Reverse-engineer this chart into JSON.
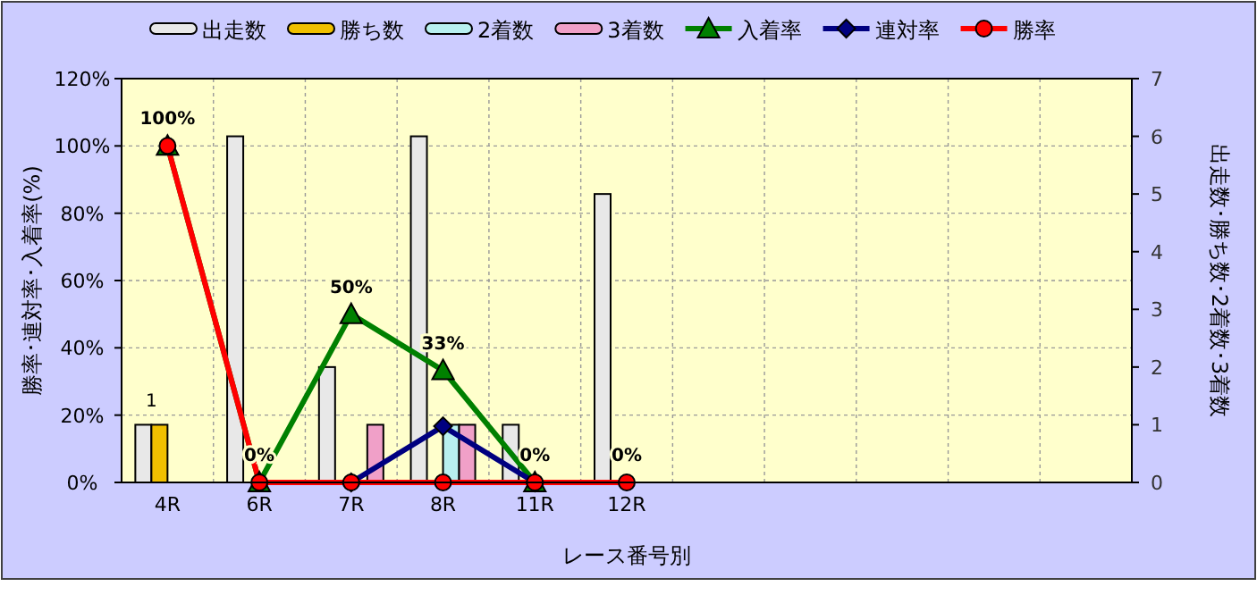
{
  "chart_data": {
    "type": "bar",
    "xlabel": "レース番号別",
    "ylabel": "勝率･連対率･入着率(%)",
    "y2label": "出走数･勝ち数･2着数･3着数",
    "categories": [
      "4R",
      "6R",
      "7R",
      "8R",
      "11R",
      "12R",
      null,
      null,
      null,
      null,
      null
    ],
    "ylim": [
      0,
      120
    ],
    "yticks": [
      {
        "value": 0,
        "label": "0%"
      },
      {
        "value": 20,
        "label": "20%"
      },
      {
        "value": 40,
        "label": "40%"
      },
      {
        "value": 60,
        "label": "60%"
      },
      {
        "value": 80,
        "label": "80%"
      },
      {
        "value": 100,
        "label": "100%"
      },
      {
        "value": 120,
        "label": "120%"
      }
    ],
    "y2lim": [
      0,
      7
    ],
    "y2ticks": [
      0,
      1,
      2,
      3,
      4,
      5,
      6,
      7
    ],
    "grid": true,
    "legend": "top",
    "series": [
      {
        "name": "出走数",
        "axis": "y2",
        "color": "#e8e8e8",
        "values": [
          1,
          6,
          2,
          6,
          1,
          5,
          null,
          null,
          null,
          null,
          null
        ]
      },
      {
        "name": "勝ち数",
        "axis": "y2",
        "color": "#f0c000",
        "values": [
          1,
          0,
          0,
          0,
          0,
          0,
          null,
          null,
          null,
          null,
          null
        ],
        "value_labels": [
          "1",
          null,
          null,
          null,
          null,
          null,
          null,
          null,
          null,
          null,
          null
        ]
      },
      {
        "name": "2着数",
        "axis": "y2",
        "color": "#b8f0f0",
        "values": [
          0,
          0,
          0,
          1,
          0,
          0,
          null,
          null,
          null,
          null,
          null
        ]
      },
      {
        "name": "3着数",
        "axis": "y2",
        "color": "#f0a0c8",
        "values": [
          0,
          0,
          1,
          1,
          0,
          0,
          null,
          null,
          null,
          null,
          null
        ]
      },
      {
        "name": "入着率",
        "type": "line",
        "axis": "y",
        "color": "#008000",
        "marker": "triangle",
        "values": [
          100,
          0,
          50,
          33.3,
          0,
          null,
          null,
          null,
          null,
          null,
          null
        ],
        "value_labels": [
          "100%",
          "0%",
          "50%",
          "33%",
          "0%",
          null,
          null,
          null,
          null,
          null,
          null
        ]
      },
      {
        "name": "連対率",
        "type": "line",
        "axis": "y",
        "color": "#000080",
        "marker": "diamond",
        "values": [
          null,
          null,
          0,
          16.7,
          0,
          null,
          null,
          null,
          null,
          null,
          null
        ]
      },
      {
        "name": "勝率",
        "type": "line",
        "axis": "y",
        "color": "#ff0000",
        "marker": "circle",
        "values": [
          100,
          0,
          0,
          0,
          0,
          0,
          null,
          null,
          null,
          null,
          null
        ],
        "value_labels": [
          null,
          null,
          null,
          null,
          null,
          "0%",
          null,
          null,
          null,
          null,
          null
        ]
      }
    ]
  }
}
